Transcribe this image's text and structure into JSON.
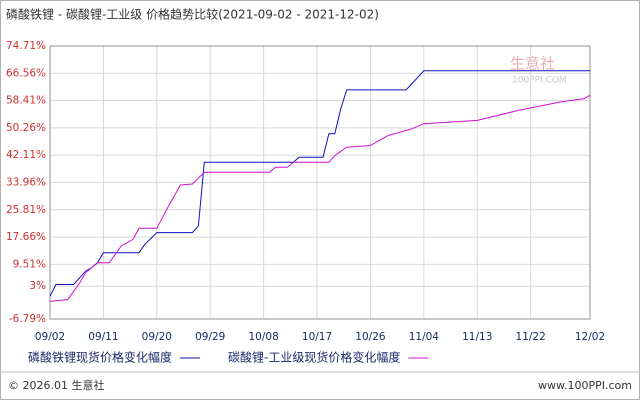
{
  "chart_data": {
    "type": "line",
    "title": "磷酸铁锂 - 碳酸锂-工业级 价格趋势比较(2021-09-02 - 2021-12-02)",
    "watermark": "生意社",
    "watermark_sub": "100PPI.COM",
    "footer_left": "© 2026.01 生意社",
    "footer_right": "www.100PPI.com",
    "ylim": [
      -6.79,
      74.71
    ],
    "yticks": [
      -6.79,
      3,
      9.51,
      17.66,
      25.81,
      33.96,
      42.11,
      50.26,
      58.41,
      66.56,
      74.71
    ],
    "y_tick_suffix": "%",
    "xlim": [
      "09/02",
      "12/02"
    ],
    "xticks": [
      "09/02",
      "09/11",
      "09/20",
      "09/29",
      "10/08",
      "10/17",
      "10/26",
      "11/04",
      "11/13",
      "11/22",
      "12/02"
    ],
    "grid": true,
    "series": [
      {
        "name": "磷酸铁锂现货价格变化幅度",
        "color": "#1010c0",
        "x": [
          "09/02",
          "09/03",
          "09/06",
          "09/08",
          "09/09",
          "09/10",
          "09/11",
          "09/17",
          "09/18",
          "09/20",
          "09/26",
          "09/27",
          "09/28",
          "10/13",
          "10/14",
          "10/18",
          "10/19",
          "10/20",
          "10/21",
          "10/22",
          "11/01",
          "11/02",
          "11/04",
          "12/02"
        ],
        "values": [
          0,
          3.5,
          3.5,
          7.5,
          8.5,
          10,
          13,
          13,
          15.5,
          19,
          19,
          21,
          40,
          40,
          41.5,
          41.5,
          48.5,
          48.5,
          56,
          61.6,
          61.6,
          63.5,
          67.3,
          67.3
        ]
      },
      {
        "name": "碳酸锂-工业级现货价格变化幅度",
        "color": "#d010d0",
        "x": [
          "09/02",
          "09/05",
          "09/07",
          "09/08",
          "09/10",
          "09/12",
          "09/14",
          "09/16",
          "09/17",
          "09/20",
          "09/22",
          "09/24",
          "09/26",
          "09/28",
          "10/09",
          "10/10",
          "10/12",
          "10/13",
          "10/19",
          "10/20",
          "10/22",
          "10/26",
          "10/29",
          "11/02",
          "11/04",
          "11/13",
          "11/20",
          "11/27",
          "12/01",
          "12/02"
        ],
        "values": [
          -1.5,
          -1,
          4,
          7,
          10,
          10,
          15,
          17,
          20.3,
          20.3,
          27,
          33.2,
          33.5,
          37,
          37,
          38.5,
          38.5,
          40,
          40,
          42,
          44.5,
          45,
          48,
          50,
          51.5,
          52.5,
          55.5,
          58,
          59,
          60
        ]
      }
    ]
  }
}
